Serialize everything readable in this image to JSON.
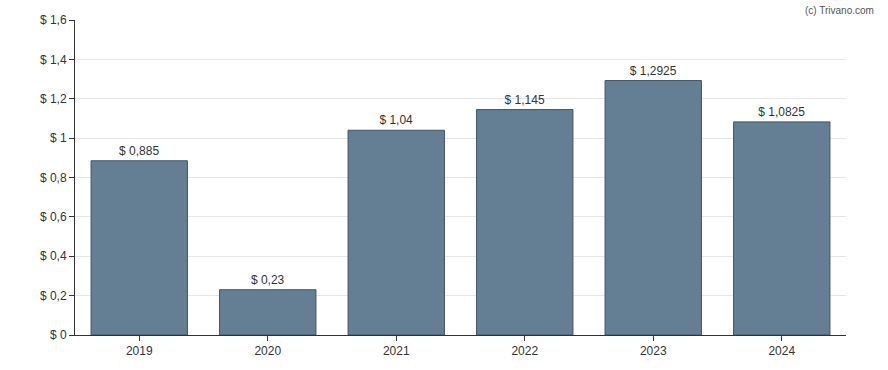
{
  "chart_data": {
    "type": "bar",
    "categories": [
      "2019",
      "2020",
      "2021",
      "2022",
      "2023",
      "2024"
    ],
    "values": [
      0.885,
      0.23,
      1.04,
      1.145,
      1.2925,
      1.0825
    ],
    "value_labels": [
      "$ 0,885",
      "$ 0,23",
      "$ 1,04",
      "$ 1,145",
      "$ 1,2925",
      "$ 1,0825"
    ],
    "data_labels": true,
    "color": "#647f94",
    "ylim": [
      0,
      1.6
    ],
    "yticks": [
      {
        "value": 0,
        "label": "$ 0"
      },
      {
        "value": 0.2,
        "label": "$ 0,2"
      },
      {
        "value": 0.4,
        "label": "$ 0,4"
      },
      {
        "value": 0.6,
        "label": "$ 0,6"
      },
      {
        "value": 0.8,
        "label": "$ 0,8"
      },
      {
        "value": 1,
        "label": "$ 1"
      },
      {
        "value": 1.2,
        "label": "$ 1,2"
      },
      {
        "value": 1.4,
        "label": "$ 1,4"
      },
      {
        "value": 1.6,
        "label": "$ 1,6"
      }
    ],
    "grid": true,
    "annotations": [
      "(c) Trivano.com"
    ]
  }
}
